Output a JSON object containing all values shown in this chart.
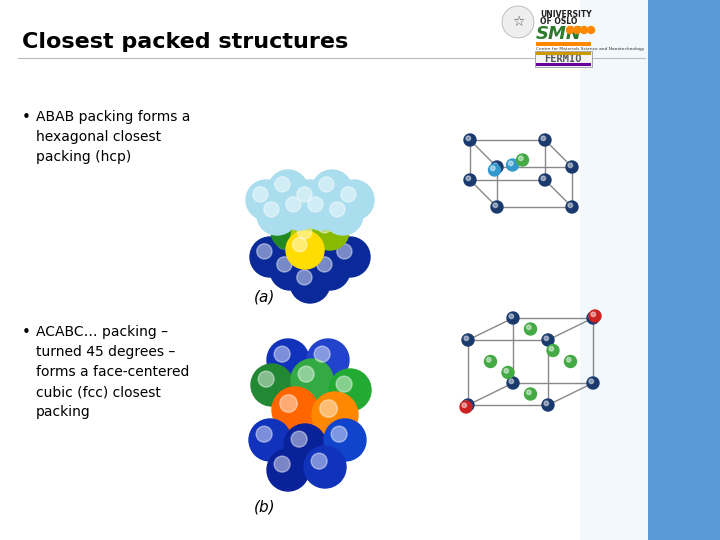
{
  "title": "Closest packed structures",
  "title_fontsize": 16,
  "title_fontweight": "bold",
  "bg_color": "#ffffff",
  "right_bg_color": "#5b9bd5",
  "bullet1": "ABAB packing forms a\nhexagonal closest\npacking (hcp)",
  "bullet2": "ACABC… packing –\nturned 45 degrees –\nforms a face-centered\ncubic (fcc) closest\npacking",
  "bullet_fontsize": 10,
  "label_a": "(a)",
  "label_b": "(b)",
  "label_fontsize": 11,
  "hcp_crystal": {
    "corner_color": "#1a3a6e",
    "mid_color": "#3399cc",
    "center_color": "#44aa44",
    "line_color": "#888888"
  },
  "fcc_crystal": {
    "corner_color": "#1a3a6e",
    "face_color": "#44aa44",
    "special_color": "#cc2222",
    "line_color": "#888888"
  }
}
